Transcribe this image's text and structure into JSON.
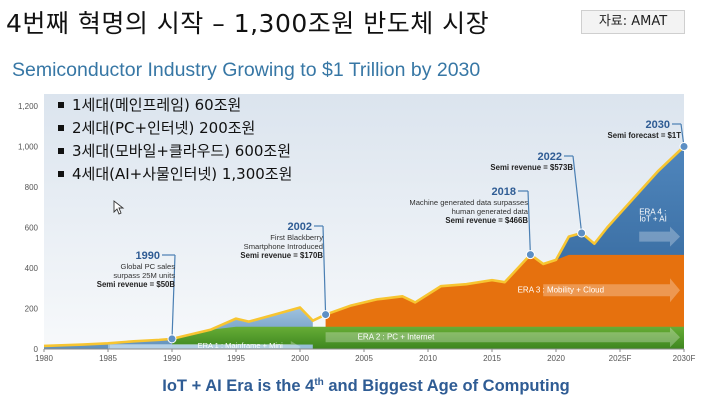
{
  "page_title": "4번째 혁명의 시작 – 1,300조원 반도체 시장",
  "source_label": "자료: AMAT",
  "bullets": [
    "1세대(메인프레임) 60조원",
    "2세대(PC+인터넷) 200조원",
    "3세대(모바일+클라우드) 600조원",
    "4세대(AI+사물인터넷) 1,300조원"
  ],
  "colors": {
    "era1": "#6f9fc6",
    "era2": "#4f9b2a",
    "era3": "#e6710e",
    "era4": "#3b6fa6",
    "revenue_line": "#f7c531",
    "title_blue": "#3777a5",
    "footer_blue": "#2f5c94"
  },
  "chart_data": {
    "type": "area",
    "title": "Semiconductor Industry Growing to $1 Trillion by 2030",
    "footer": "IoT + AI Era is the 4th and Biggest Age of Computing",
    "xlabel": "",
    "ylabel": "",
    "x_ticks": [
      "1980",
      "1985",
      "1990",
      "1995",
      "2000",
      "2005",
      "2010",
      "2015",
      "2020",
      "2025F",
      "2030F"
    ],
    "y_ticks": [
      "0",
      "200",
      "400",
      "600",
      "800",
      "1,000",
      "1,200"
    ],
    "ylim": [
      0,
      1200
    ],
    "xlim": [
      1980,
      2030
    ],
    "grid": false,
    "revenue_series": {
      "x": [
        1980,
        1983,
        1985,
        1987,
        1989,
        1990,
        1993,
        1995,
        1996,
        1998,
        2000,
        2001,
        2002,
        2004,
        2006,
        2008,
        2009,
        2011,
        2013,
        2015,
        2016,
        2018,
        2019,
        2020,
        2021,
        2022,
        2023,
        2024,
        2026,
        2028,
        2030
      ],
      "y": [
        15,
        22,
        28,
        38,
        45,
        50,
        95,
        150,
        135,
        170,
        205,
        140,
        170,
        215,
        245,
        260,
        230,
        310,
        320,
        340,
        330,
        466,
        420,
        440,
        555,
        573,
        520,
        600,
        740,
        880,
        1000
      ]
    },
    "eras": [
      {
        "label": "ERA 1 : Mainframe + Mini",
        "start": 1985,
        "end": 2001
      },
      {
        "label": "ERA 2 : PC + Internet",
        "start": 1990,
        "end": 2030
      },
      {
        "label": "ERA 3 : Mobility + Cloud",
        "start": 2002,
        "end": 2030
      },
      {
        "label": "ERA 4 :",
        "label2": "IoT + AI",
        "start": 2018,
        "end": 2030
      }
    ],
    "annotations": [
      {
        "year_label": "1990",
        "x": 1990,
        "y": 50,
        "lines": [
          "Global PC sales",
          "surpass 25M units"
        ],
        "revenue": "Semi revenue = $50B"
      },
      {
        "year_label": "2002",
        "x": 2002,
        "y": 170,
        "lines": [
          "First Blackberry",
          "Smartphone Introduced"
        ],
        "revenue": "Semi revenue = $170B"
      },
      {
        "year_label": "2018",
        "x": 2018,
        "y": 466,
        "lines": [
          "Machine generated data surpasses",
          "human generated data"
        ],
        "revenue": "Semi revenue = $466B"
      },
      {
        "year_label": "2022",
        "x": 2022,
        "y": 573,
        "lines": [],
        "revenue": "Semi revenue = $573B"
      },
      {
        "year_label": "2030",
        "x": 2030,
        "y": 1000,
        "lines": [],
        "revenue": "Semi forecast = $1T"
      }
    ]
  }
}
